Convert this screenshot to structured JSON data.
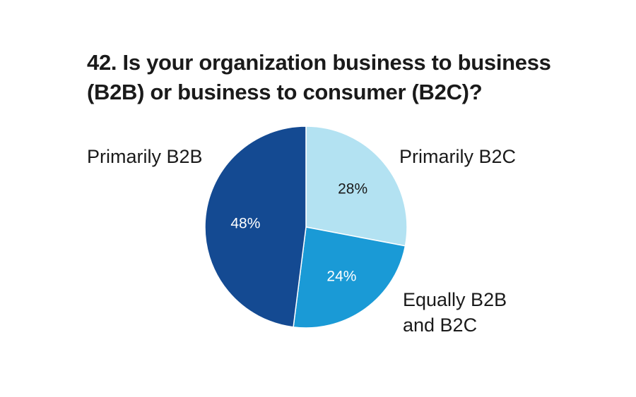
{
  "title_lines": [
    "42. Is your organization business to business",
    "(B2B) or business to consumer (B2C)?"
  ],
  "chart_data": {
    "type": "pie",
    "title": "42. Is your organization business to business (B2B) or business to consumer (B2C)?",
    "unit": "%",
    "start_angle_deg": 0,
    "direction": "clockwise",
    "slices": [
      {
        "label": "Primarily B2C",
        "label_lines": [
          "Primarily B2C"
        ],
        "value": 28,
        "value_label": "28%",
        "color": "#b3e2f2",
        "value_text_color": "#1a1a1a"
      },
      {
        "label": "Equally B2B and B2C",
        "label_lines": [
          "Equally B2B",
          "and B2C"
        ],
        "value": 24,
        "value_label": "24%",
        "color": "#1a9ad6",
        "value_text_color": "#ffffff"
      },
      {
        "label": "Primarily B2B",
        "label_lines": [
          "Primarily B2B"
        ],
        "value": 48,
        "value_label": "48%",
        "color": "#144a92",
        "value_text_color": "#ffffff"
      }
    ]
  }
}
